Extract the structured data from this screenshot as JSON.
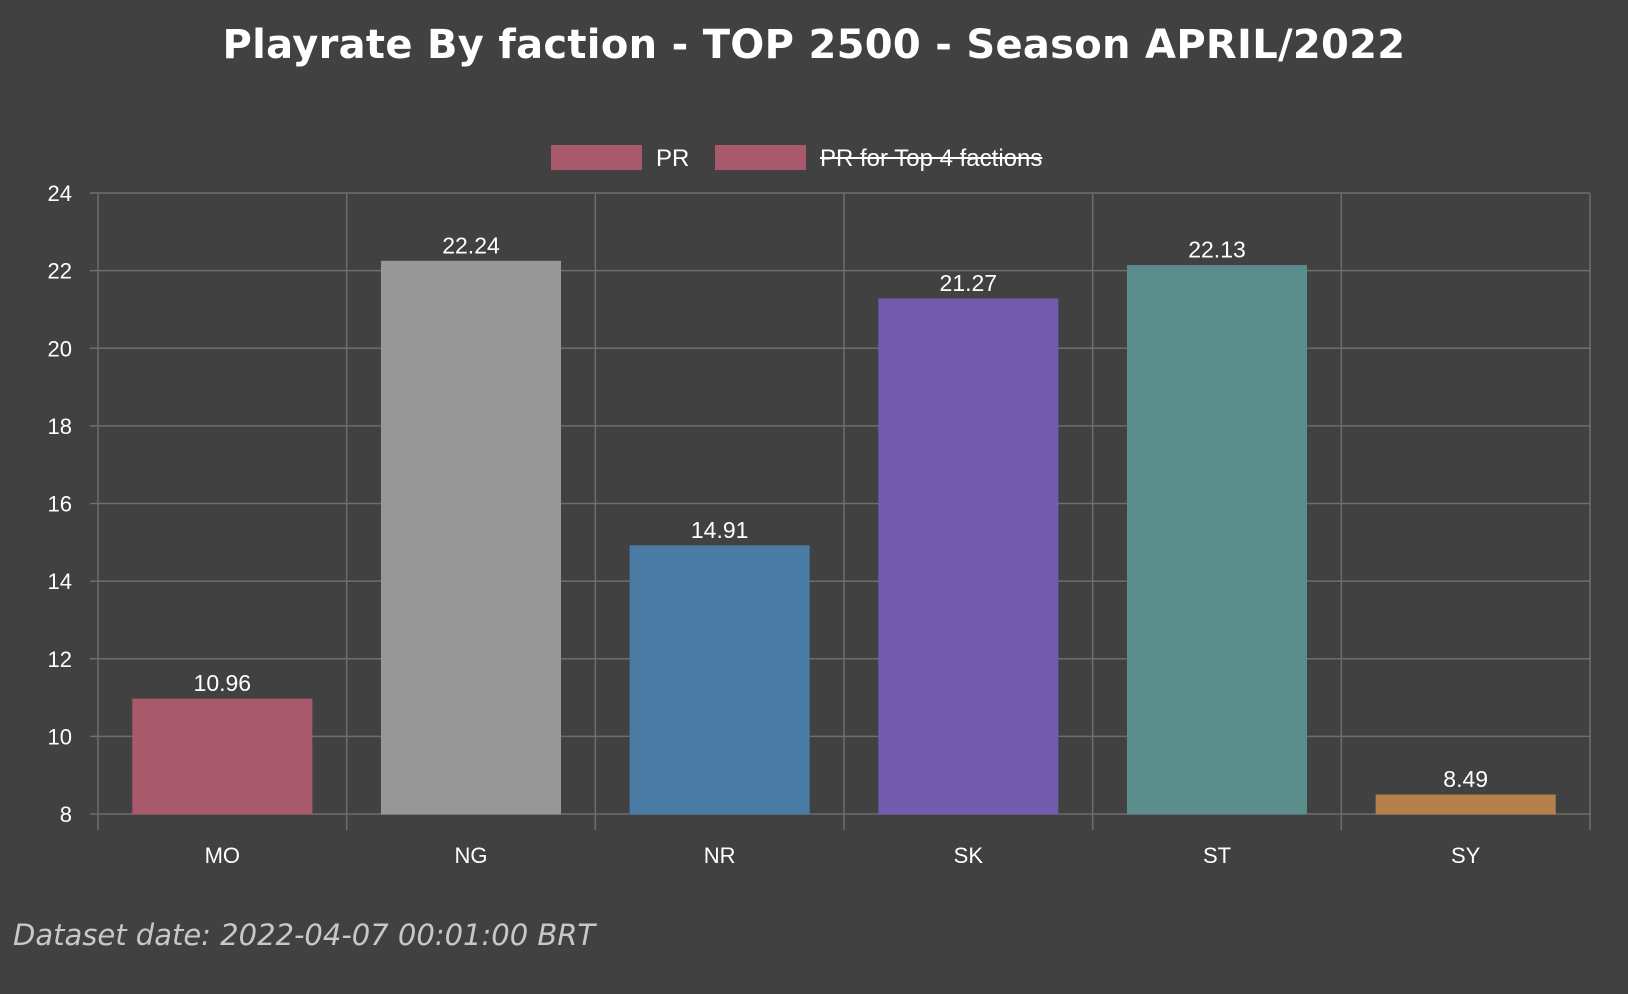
{
  "chart_data": {
    "type": "bar",
    "title": "Playrate By faction - TOP 2500 - Season APRIL/2022",
    "categories": [
      "MO",
      "NG",
      "NR",
      "SK",
      "ST",
      "SY"
    ],
    "series": [
      {
        "name": "PR",
        "values": [
          10.96,
          22.24,
          14.91,
          21.27,
          22.13,
          8.49
        ],
        "value_labels": [
          "10.96",
          "22.24",
          "14.91",
          "21.27",
          "22.13",
          "8.49"
        ],
        "colors": [
          "#a85a6c",
          "#979797",
          "#4a7ba4",
          "#735bae",
          "#5a8d8c",
          "#b5804c"
        ],
        "hidden": false
      },
      {
        "name": "PR for Top 4 factions",
        "color": "#a85a6c",
        "hidden": true
      }
    ],
    "ylim": [
      8,
      24
    ],
    "yticks": [
      "8",
      "10",
      "12",
      "14",
      "16",
      "18",
      "20",
      "22",
      "24"
    ],
    "xlabel": "",
    "ylabel": "",
    "grid": true,
    "legend_position": "top-center"
  },
  "colors": {
    "background": "#414141",
    "grid": "#6e6e6e",
    "text": "#ffffff",
    "footer": "#c8c8c8"
  },
  "footer": {
    "note": "Dataset date: 2022-04-07 00:01:00 BRT"
  }
}
